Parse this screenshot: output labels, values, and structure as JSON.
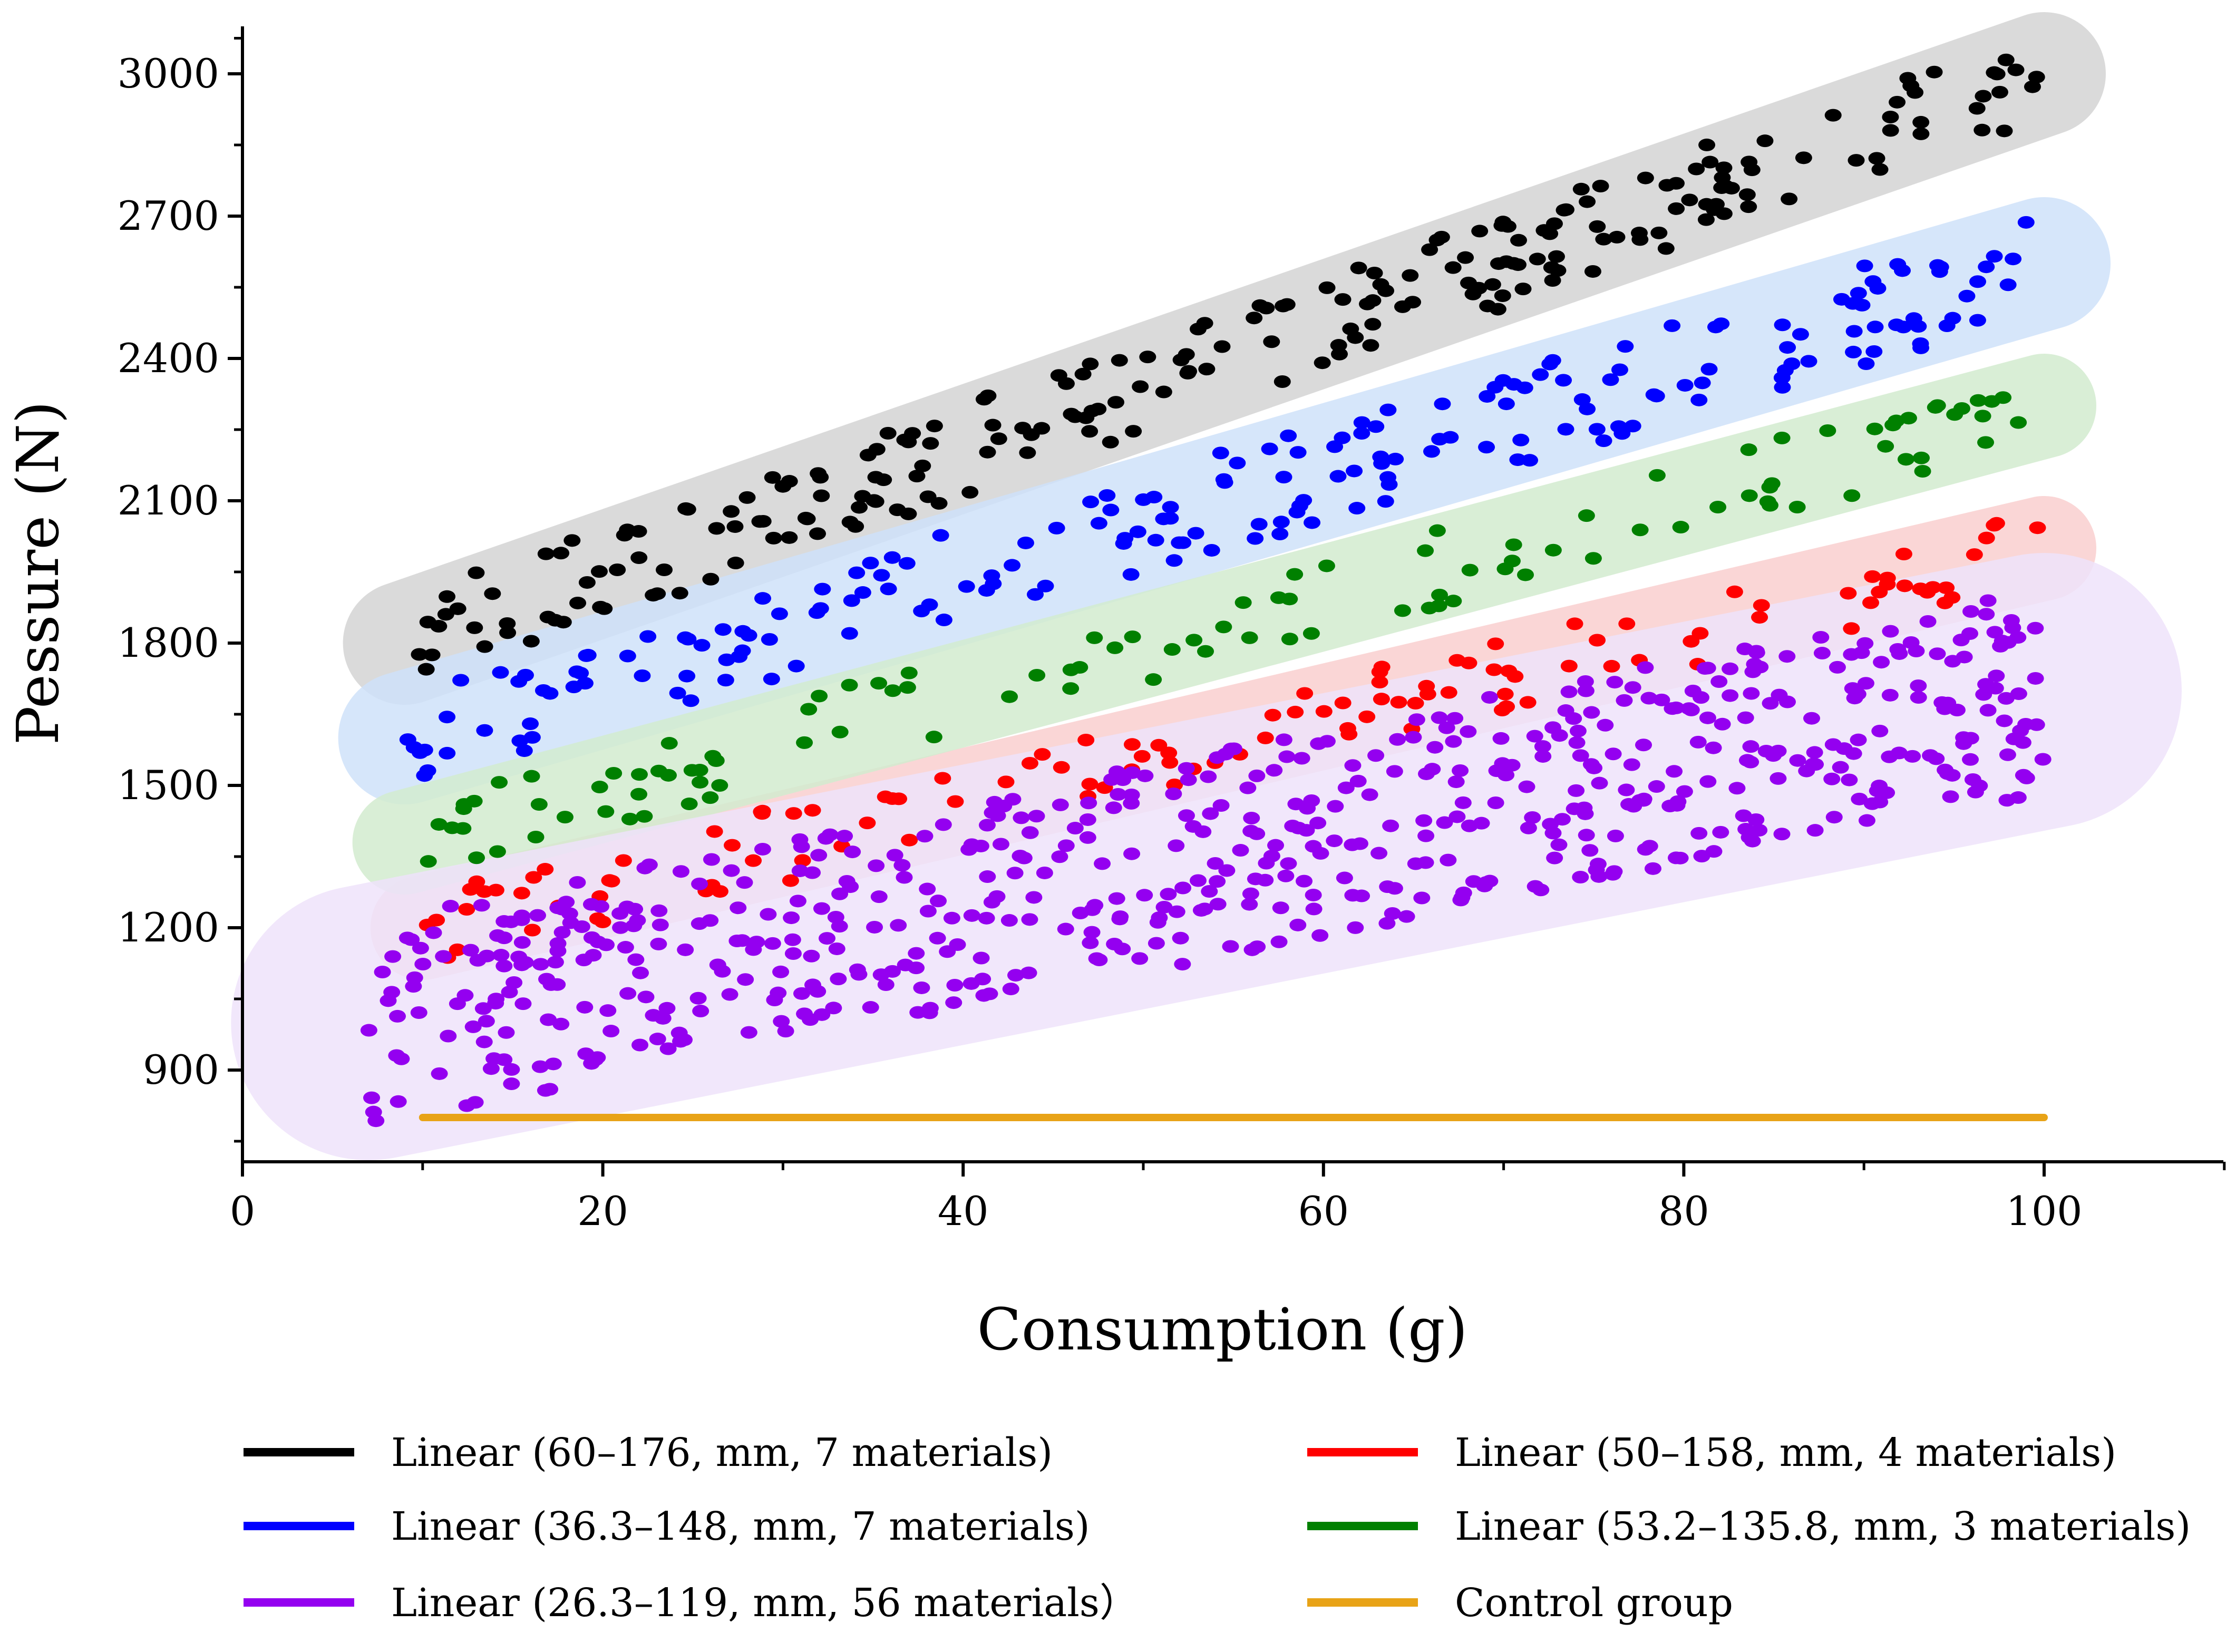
{
  "chart_data": {
    "type": "scatter",
    "title": "",
    "xlabel": "Consumption (g)",
    "ylabel": "Pessure (N)",
    "xlim": [
      0,
      110
    ],
    "ylim": [
      700,
      3100
    ],
    "xticks": [
      0,
      20,
      40,
      60,
      80,
      100
    ],
    "yticks": [
      900,
      1200,
      1500,
      1800,
      2100,
      2400,
      2700,
      3000
    ],
    "grid": false,
    "legend_position": "bottom",
    "series": [
      {
        "name": "Linear (60–176, mm, 7 materials)",
        "color": "#000000",
        "band_color": "#d4d4d4",
        "x_range": [
          9,
          100
        ],
        "y_start": 1800,
        "y_end": 3000,
        "band_width": 130,
        "point_count": 230
      },
      {
        "name": "Linear (36.3–148, mm, 7 materials)",
        "color": "#0000ff",
        "band_color": "#cfe2fa",
        "x_range": [
          9,
          100
        ],
        "y_start": 1600,
        "y_end": 2600,
        "band_width": 140,
        "point_count": 200
      },
      {
        "name": "Linear (50–158, mm, 4 materials)",
        "color": "#ff0000",
        "band_color": "#fad0cf",
        "x_range": [
          10,
          100
        ],
        "y_start": 1200,
        "y_end": 2000,
        "band_width": 110,
        "point_count": 120
      },
      {
        "name": "Linear (53.2–135.8, mm, 3 materials)",
        "color": "#008000",
        "band_color": "#d3ecd0",
        "x_range": [
          9,
          100
        ],
        "y_start": 1380,
        "y_end": 2300,
        "band_width": 110,
        "point_count": 110
      },
      {
        "name": "Linear (26.3–119, mm, 56 materials）",
        "color": "#9400f0",
        "band_color": "#efe3fb",
        "x_range": [
          7,
          100
        ],
        "y_start": 1000,
        "y_end": 1700,
        "band_width": 290,
        "point_count": 620
      },
      {
        "name": "Control group",
        "color": "#e8a317",
        "x": [
          10,
          100
        ],
        "y": [
          800,
          800
        ]
      }
    ]
  }
}
